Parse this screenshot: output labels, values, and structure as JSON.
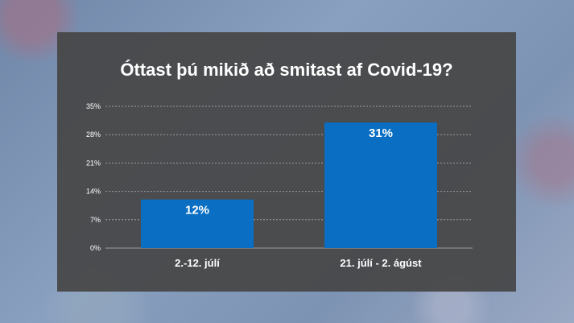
{
  "chart_data": {
    "type": "bar",
    "title": "Óttast þú mikið að smitast af Covid-19?",
    "categories": [
      "2.-12. júlí",
      "21. júlí - 2. ágúst"
    ],
    "values": [
      12,
      31
    ],
    "data_labels": [
      "12%",
      "31%"
    ],
    "yticks": [
      "0%",
      "7%",
      "14%",
      "21%",
      "28%",
      "35%"
    ],
    "ylim": [
      0,
      35
    ],
    "grid": true,
    "bar_color": "#0a6fc2",
    "xlabel": "",
    "ylabel": ""
  }
}
